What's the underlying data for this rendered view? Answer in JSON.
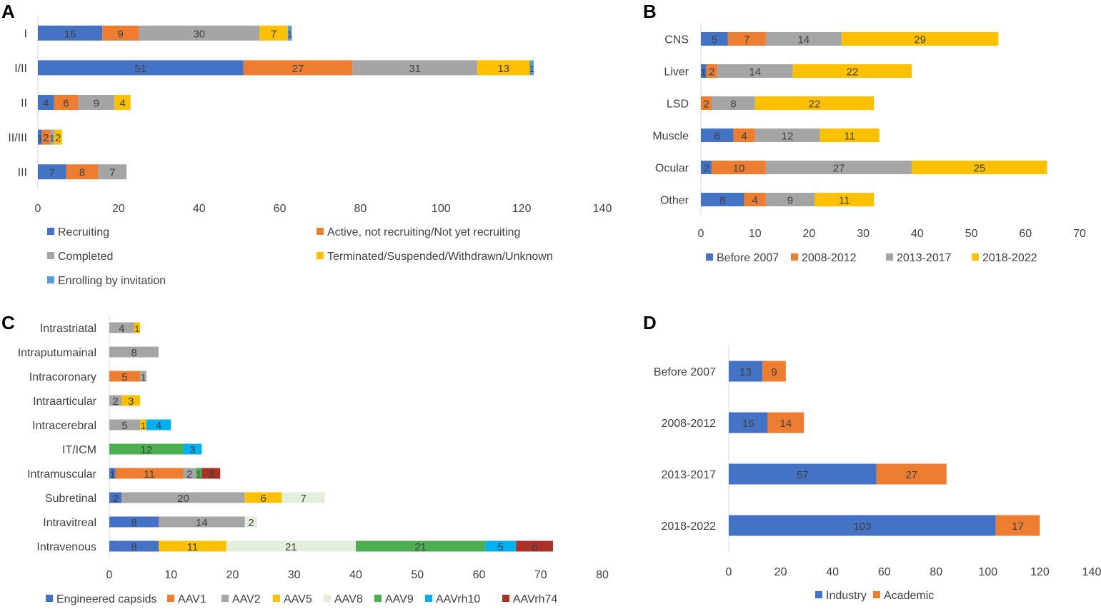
{
  "chart_data": [
    {
      "panel": "A",
      "type": "bar",
      "orientation": "horizontal",
      "stacked": true,
      "categories": [
        "I",
        "I/II",
        "II",
        "II/III",
        "III"
      ],
      "series": [
        {
          "name": "Recruiting",
          "values": [
            16,
            51,
            4,
            1,
            7
          ],
          "color": "#4472C4"
        },
        {
          "name": "Active, not recruiting/Not yet recruiting",
          "values": [
            9,
            27,
            6,
            2,
            8
          ],
          "color": "#ED7D31"
        },
        {
          "name": "Completed",
          "values": [
            30,
            31,
            9,
            1,
            7
          ],
          "color": "#A5A5A5"
        },
        {
          "name": "Terminated/Suspended/Withdrawn/Unknown",
          "values": [
            7,
            13,
            4,
            2,
            0
          ],
          "color": "#FFC000"
        },
        {
          "name": "Enrolling by invitation",
          "values": [
            1,
            1,
            0,
            0,
            0
          ],
          "color": "#5B9BD5"
        }
      ],
      "xlim": [
        0,
        140
      ],
      "xticks": [
        "0",
        "20",
        "40",
        "60",
        "80",
        "100",
        "120",
        "140"
      ],
      "legend_position": "bottom"
    },
    {
      "panel": "B",
      "type": "bar",
      "orientation": "horizontal",
      "stacked": true,
      "categories": [
        "CNS",
        "Liver",
        "LSD",
        "Muscle",
        "Ocular",
        "Other"
      ],
      "series": [
        {
          "name": "Before 2007",
          "values": [
            5,
            1,
            0,
            6,
            2,
            8
          ],
          "color": "#4472C4"
        },
        {
          "name": "2008-2012",
          "values": [
            7,
            2,
            2,
            4,
            10,
            4
          ],
          "color": "#ED7D31"
        },
        {
          "name": "2013-2017",
          "values": [
            14,
            14,
            8,
            12,
            27,
            9
          ],
          "color": "#A5A5A5"
        },
        {
          "name": "2018-2022",
          "values": [
            29,
            22,
            22,
            11,
            25,
            11
          ],
          "color": "#FFC000"
        }
      ],
      "xlim": [
        0,
        70
      ],
      "xticks": [
        "0",
        "10",
        "20",
        "30",
        "40",
        "50",
        "60",
        "70"
      ],
      "legend_position": "bottom"
    },
    {
      "panel": "C",
      "type": "bar",
      "orientation": "horizontal",
      "stacked": true,
      "categories": [
        "Intrastriatal",
        "Intraputumainal",
        "Intracoronary",
        "Intraarticular",
        "Intracerebral",
        "IT/ICM",
        "Intramuscular",
        "Subretinal",
        "Intravitreal",
        "Intravenous"
      ],
      "series": [
        {
          "name": "Engineered capsids",
          "values": [
            0,
            0,
            0,
            0,
            0,
            0,
            1,
            2,
            8,
            8
          ],
          "color": "#4472C4"
        },
        {
          "name": "AAV1",
          "values": [
            0,
            0,
            5,
            0,
            0,
            0,
            11,
            0,
            0,
            0
          ],
          "color": "#ED7D31"
        },
        {
          "name": "AAV2",
          "values": [
            4,
            8,
            1,
            2,
            5,
            0,
            2,
            20,
            14,
            0
          ],
          "color": "#A5A5A5"
        },
        {
          "name": "AAV5",
          "values": [
            1,
            0,
            0,
            3,
            1,
            0,
            0,
            6,
            0,
            11
          ],
          "color": "#FFC000"
        },
        {
          "name": "AAV8",
          "values": [
            0,
            0,
            0,
            0,
            0,
            0,
            0,
            7,
            2,
            21
          ],
          "color": "#E2EFDA"
        },
        {
          "name": "AAV9",
          "values": [
            0,
            0,
            0,
            0,
            0,
            12,
            1,
            0,
            0,
            21
          ],
          "color": "#4CAF50"
        },
        {
          "name": "AAVrh10",
          "values": [
            0,
            0,
            0,
            0,
            4,
            3,
            0,
            0,
            0,
            5
          ],
          "color": "#00B0F0"
        },
        {
          "name": "AAVrh74",
          "values": [
            0,
            0,
            0,
            0,
            0,
            0,
            3,
            0,
            0,
            6
          ],
          "color": "#A93226"
        }
      ],
      "xlim": [
        0,
        80
      ],
      "xticks": [
        "0",
        "10",
        "20",
        "30",
        "40",
        "50",
        "60",
        "70",
        "80"
      ],
      "legend_position": "bottom"
    },
    {
      "panel": "D",
      "type": "bar",
      "orientation": "horizontal",
      "stacked": true,
      "categories": [
        "Before 2007",
        "2008-2012",
        "2013-2017",
        "2018-2022"
      ],
      "series": [
        {
          "name": "Industry",
          "values": [
            13,
            15,
            57,
            103
          ],
          "color": "#4472C4"
        },
        {
          "name": "Academic",
          "values": [
            9,
            14,
            27,
            17
          ],
          "color": "#ED7D31"
        }
      ],
      "xlim": [
        0,
        140
      ],
      "xticks": [
        "0",
        "20",
        "40",
        "60",
        "80",
        "100",
        "120",
        "140"
      ],
      "legend_position": "bottom"
    }
  ]
}
